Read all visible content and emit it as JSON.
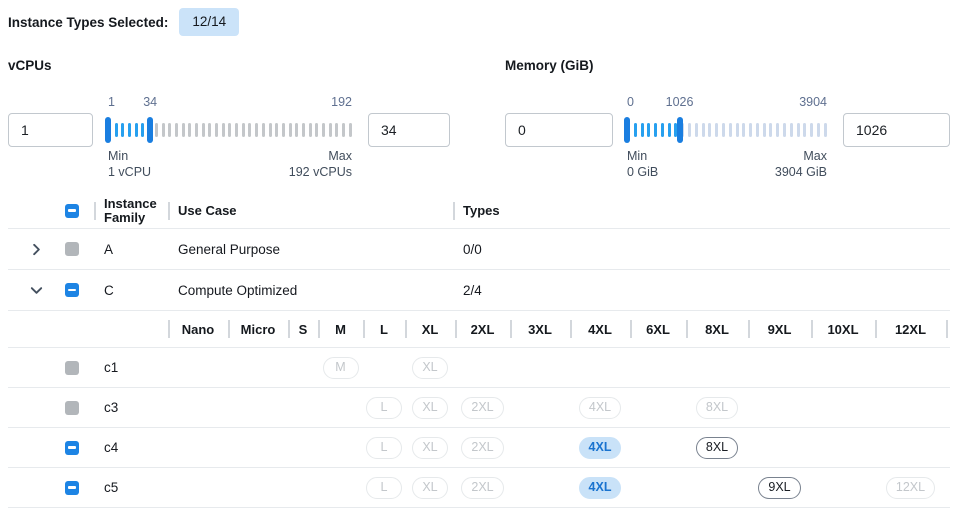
{
  "selection_summary": {
    "label": "Instance Types Selected:",
    "count": "12/14"
  },
  "filters": {
    "vcpus": {
      "label": "vCPUs",
      "low_value": "1",
      "high_value": "34",
      "scale": {
        "low": "1",
        "mid": "34",
        "high": "192"
      },
      "min_caption": "Min",
      "min_detail": "1 vCPU",
      "max_caption": "Max",
      "max_detail": "192 vCPUs",
      "slider": {
        "range_min": 1,
        "range_max": 192,
        "selected_low": 1,
        "selected_high": 34,
        "tick_count": 37
      }
    },
    "memory": {
      "label": "Memory (GiB)",
      "low_value": "0",
      "high_value": "1026",
      "scale": {
        "low": "0",
        "mid": "1026",
        "high": "3904"
      },
      "min_caption": "Min",
      "min_detail": "0 GiB",
      "max_caption": "Max",
      "max_detail": "3904 GiB",
      "slider": {
        "range_min": 0,
        "range_max": 3904,
        "selected_low": 0,
        "selected_high": 1026,
        "tick_count": 30
      }
    }
  },
  "table": {
    "headers": {
      "family": "Instance Family",
      "use_case": "Use Case",
      "types": "Types"
    },
    "select_all_state": "indeterminate",
    "size_columns": [
      "Nano",
      "Micro",
      "S",
      "M",
      "L",
      "XL",
      "2XL",
      "3XL",
      "4XL",
      "6XL",
      "8XL",
      "9XL",
      "10XL",
      "12XL"
    ],
    "family_rows": [
      {
        "name": "A",
        "use_case": "General Purpose",
        "types": "0/0",
        "expanded": false,
        "checkbox": "disabled"
      },
      {
        "name": "C",
        "use_case": "Compute Optimized",
        "types": "2/4",
        "expanded": true,
        "checkbox": "indeterminate"
      }
    ],
    "instance_rows": [
      {
        "name": "c1",
        "checkbox": "disabled",
        "sizes": [
          {
            "col": "M",
            "state": "disabled"
          },
          {
            "col": "XL",
            "state": "disabled"
          }
        ]
      },
      {
        "name": "c3",
        "checkbox": "disabled",
        "sizes": [
          {
            "col": "L",
            "state": "disabled"
          },
          {
            "col": "XL",
            "state": "disabled"
          },
          {
            "col": "2XL",
            "state": "disabled"
          },
          {
            "col": "4XL",
            "state": "disabled"
          },
          {
            "col": "8XL",
            "state": "disabled"
          }
        ]
      },
      {
        "name": "c4",
        "checkbox": "indeterminate",
        "sizes": [
          {
            "col": "L",
            "state": "disabled"
          },
          {
            "col": "XL",
            "state": "disabled"
          },
          {
            "col": "2XL",
            "state": "disabled"
          },
          {
            "col": "4XL",
            "state": "selected"
          },
          {
            "col": "8XL",
            "state": "available"
          }
        ]
      },
      {
        "name": "c5",
        "checkbox": "indeterminate",
        "sizes": [
          {
            "col": "L",
            "state": "disabled"
          },
          {
            "col": "XL",
            "state": "disabled"
          },
          {
            "col": "2XL",
            "state": "disabled"
          },
          {
            "col": "4XL",
            "state": "selected"
          },
          {
            "col": "9XL",
            "state": "available"
          },
          {
            "col": "12XL",
            "state": "disabled"
          }
        ]
      }
    ]
  },
  "colors": {
    "accent_blue": "#1d84e4",
    "badge_bg": "#cbe3f9",
    "tick_active": "#27a0ef",
    "tick_inactive_vcpu": "#c4c7ca",
    "tick_inactive_memory": "#cdd9eb",
    "selected_pill_bg": "#c9e2f8",
    "selected_pill_text": "#1a73cf"
  }
}
